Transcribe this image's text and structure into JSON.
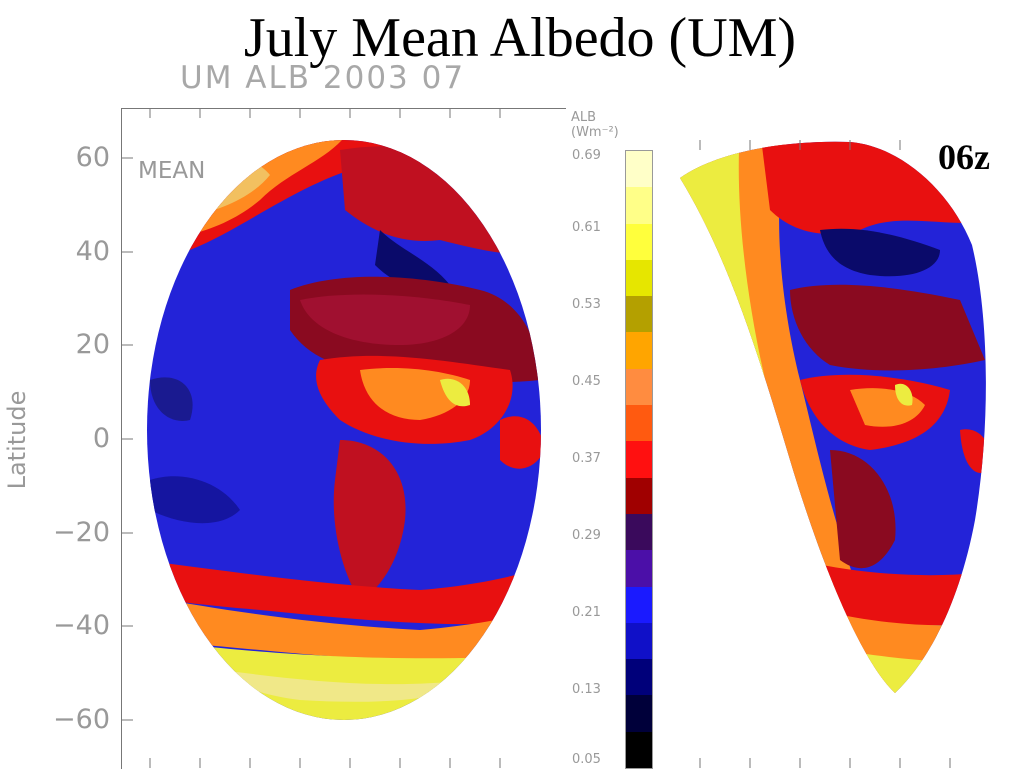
{
  "slide_title": "July Mean Albedo (UM)",
  "plot_caption": "UM ALB 2003 07",
  "left_panel": {
    "stat_label": "MEAN",
    "ylabel": "Latitude",
    "ytick_labels": [
      "60",
      "40",
      "20",
      "0",
      "−20",
      "−40",
      "−60"
    ],
    "ytick_values": [
      60,
      40,
      20,
      0,
      -20,
      -40,
      -60
    ]
  },
  "right_panel": {
    "time_label": "06z"
  },
  "colorbar": {
    "variable": "ALB",
    "units": "(Wm⁻²)",
    "tick_labels": [
      "0.69",
      "0.61",
      "0.53",
      "0.45",
      "0.37",
      "0.29",
      "0.21",
      "0.13",
      "0.05"
    ],
    "colors": [
      "#000000",
      "#00003a",
      "#00007a",
      "#1010c8",
      "#1a1aff",
      "#4b0fa8",
      "#3a0a5c",
      "#a00000",
      "#ff1010",
      "#ff5a10",
      "#ff8c40",
      "#ffa500",
      "#b4a000",
      "#e6e600",
      "#ffff3c",
      "#ffff88",
      "#ffffc8"
    ]
  },
  "map_palette": {
    "ocean": "#2323d8",
    "dark_ocean": "#0a0a6a",
    "land_dark": "#8a0a20",
    "red": "#e81010",
    "orange": "#ff8a20",
    "yellow": "#ecec40",
    "pale": "#f0e888"
  }
}
